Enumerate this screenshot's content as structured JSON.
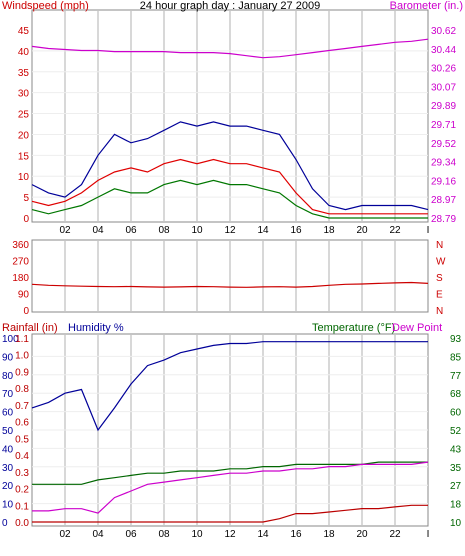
{
  "colors": {
    "wind_speed": "#e00000",
    "wind_gust": "#000099",
    "wind_avg": "#007700",
    "barometer": "#cc00cc",
    "direction": "#cc0000",
    "rain": "#bb0000",
    "humidity": "#000099",
    "temperature": "#006600",
    "dew_point": "#cc00cc",
    "grid": "#d8d8d8"
  },
  "chart_data": [
    {
      "type": "line",
      "title": "24 hour graph day : January 27 2009",
      "ylabel_left": "Windspeed (mph)",
      "ylabel_right": "Barometer (in.)",
      "x_ticks": [
        "02",
        "04",
        "06",
        "08",
        "10",
        "12",
        "14",
        "16",
        "18",
        "20",
        "22",
        "I"
      ],
      "y_ticks_left": [
        "45",
        "40",
        "35",
        "30",
        "25",
        "20",
        "15",
        "10",
        "5",
        "0"
      ],
      "y_ticks_right": [
        "30.62",
        "30.44",
        "30.26",
        "30.07",
        "29.89",
        "29.71",
        "29.52",
        "29.34",
        "29.16",
        "28.97",
        "28.79"
      ],
      "ylim_left": [
        0,
        45
      ],
      "ylim_right": [
        28.79,
        30.62
      ],
      "x": [
        0,
        1,
        2,
        3,
        4,
        5,
        6,
        7,
        8,
        9,
        10,
        11,
        12,
        13,
        14,
        15,
        16,
        17,
        18,
        19,
        20,
        21,
        22,
        23,
        24
      ],
      "series": [
        {
          "key": "gust",
          "axis": "left",
          "values": [
            8,
            6,
            5,
            8,
            15,
            20,
            18,
            19,
            21,
            23,
            22,
            23,
            22,
            22,
            21,
            20,
            14,
            7,
            3,
            2,
            3,
            3,
            3,
            3,
            2
          ]
        },
        {
          "key": "avg",
          "axis": "left",
          "values": [
            4,
            3,
            4,
            6,
            9,
            11,
            12,
            11,
            13,
            14,
            13,
            14,
            13,
            13,
            12,
            11,
            6,
            2,
            1,
            1,
            1,
            1,
            1,
            1,
            1
          ]
        },
        {
          "key": "speed",
          "axis": "left",
          "values": [
            2,
            1,
            2,
            3,
            5,
            7,
            6,
            6,
            8,
            9,
            8,
            9,
            8,
            8,
            7,
            6,
            3,
            1,
            0,
            0,
            0,
            0,
            0,
            0,
            0
          ]
        },
        {
          "key": "baro",
          "axis": "right",
          "values": [
            30.46,
            30.44,
            30.43,
            30.42,
            30.42,
            30.41,
            30.41,
            30.41,
            30.41,
            30.4,
            30.4,
            30.4,
            30.39,
            30.37,
            30.35,
            30.36,
            30.38,
            30.4,
            30.42,
            30.44,
            30.46,
            30.48,
            30.5,
            30.51,
            30.53
          ]
        }
      ]
    },
    {
      "type": "line",
      "ylabel_right_labels": [
        "N",
        "W",
        "S",
        "E",
        "N"
      ],
      "y_ticks_left": [
        "360",
        "270",
        "180",
        "90",
        "0"
      ],
      "ylim": [
        0,
        360
      ],
      "x": [
        0,
        1,
        2,
        3,
        4,
        5,
        6,
        7,
        8,
        9,
        10,
        11,
        12,
        13,
        14,
        15,
        16,
        17,
        18,
        19,
        20,
        21,
        22,
        23,
        24
      ],
      "series": [
        {
          "key": "direction",
          "values": [
            140,
            135,
            132,
            130,
            128,
            127,
            128,
            126,
            125,
            126,
            128,
            127,
            125,
            124,
            126,
            127,
            125,
            128,
            135,
            140,
            142,
            145,
            148,
            150,
            145
          ]
        }
      ]
    },
    {
      "type": "line",
      "ylabel_left_1": "Rainfall (in)",
      "ylabel_left_2": "Humidity %",
      "ylabel_right_1": "Temperature (°F)",
      "ylabel_right_2": "Dew Point",
      "x_ticks": [
        "02",
        "04",
        "06",
        "08",
        "10",
        "12",
        "14",
        "16",
        "18",
        "20",
        "22",
        "I"
      ],
      "y_ticks_hum": [
        "100",
        "90",
        "80",
        "70",
        "60",
        "50",
        "40",
        "30",
        "20",
        "10",
        "0"
      ],
      "y_ticks_rain": [
        "1.1",
        "1.0",
        "0.9",
        "0.8",
        "0.7",
        "0.6",
        "0.5",
        "0.4",
        "0.3",
        "0.2",
        "0.1",
        "0.0"
      ],
      "y_ticks_temp": [
        "93",
        "85",
        "77",
        "68",
        "60",
        "52",
        "43",
        "35",
        "27",
        "18",
        "10"
      ],
      "ylim_hum": [
        0,
        100
      ],
      "ylim_temp": [
        10,
        93
      ],
      "x": [
        0,
        1,
        2,
        3,
        4,
        5,
        6,
        7,
        8,
        9,
        10,
        11,
        12,
        13,
        14,
        15,
        16,
        17,
        18,
        19,
        20,
        21,
        22,
        23,
        24
      ],
      "series": [
        {
          "key": "humidity",
          "values": [
            62,
            65,
            70,
            72,
            50,
            62,
            75,
            85,
            88,
            92,
            94,
            96,
            97,
            97,
            98,
            98,
            98,
            98,
            98,
            98,
            98,
            98,
            98,
            98,
            98
          ]
        },
        {
          "key": "temperature",
          "values": [
            27,
            27,
            27,
            27,
            29,
            30,
            31,
            32,
            32,
            33,
            33,
            33,
            34,
            34,
            35,
            35,
            36,
            36,
            36,
            36,
            36,
            37,
            37,
            37,
            37
          ]
        },
        {
          "key": "dew_point",
          "values": [
            15,
            15,
            16,
            16,
            14,
            21,
            24,
            27,
            28,
            29,
            30,
            31,
            32,
            32,
            33,
            33,
            34,
            34,
            35,
            35,
            36,
            36,
            36,
            36,
            37
          ]
        },
        {
          "key": "rain",
          "values": [
            0,
            0,
            0,
            0,
            0,
            0,
            0,
            0,
            0,
            0,
            0,
            0,
            0,
            0,
            0,
            0.02,
            0.05,
            0.05,
            0.06,
            0.07,
            0.08,
            0.08,
            0.09,
            0.1,
            0.1
          ]
        }
      ]
    }
  ]
}
